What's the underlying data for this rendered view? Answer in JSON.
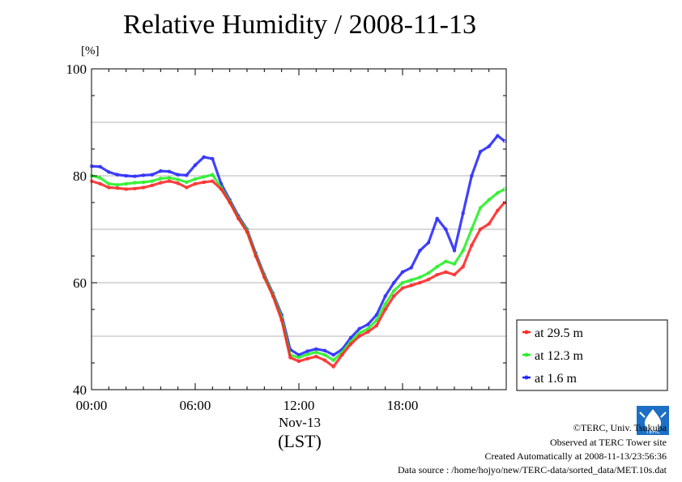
{
  "chart_data": {
    "type": "line",
    "title": "Relative Humidity / 2008-11-13",
    "ylabel": "[%]",
    "ylim": [
      40,
      100
    ],
    "y_ticks": [
      "40",
      "60",
      "80",
      "100"
    ],
    "xlim": [
      0,
      24
    ],
    "x_ticks": [
      {
        "value": 0,
        "label": "00:00"
      },
      {
        "value": 6,
        "label": "06:00"
      },
      {
        "value": 12,
        "label": "12:00"
      },
      {
        "value": 18,
        "label": "18:00"
      }
    ],
    "x_date": "Nov-13",
    "x_unit": "(LST)",
    "grid": true,
    "legend_position": "right",
    "x": [
      0,
      0.5,
      1,
      1.5,
      2,
      2.5,
      3,
      3.5,
      4,
      4.5,
      5,
      5.5,
      6,
      6.5,
      7,
      7.5,
      8,
      8.5,
      9,
      9.5,
      10,
      10.5,
      11,
      11.5,
      12,
      12.5,
      13,
      13.5,
      14,
      14.5,
      15,
      15.5,
      16,
      16.5,
      17,
      17.5,
      18,
      18.5,
      19,
      19.5,
      20,
      20.5,
      21,
      21.5,
      22,
      22.5,
      23,
      23.5,
      23.9
    ],
    "series": [
      {
        "name": "at 29.5 m",
        "color": "#ff2020",
        "values": [
          79,
          78.5,
          77.8,
          77.7,
          77.5,
          77.6,
          77.8,
          78.2,
          78.7,
          79,
          78.6,
          77.8,
          78.5,
          78.8,
          79,
          77.5,
          75,
          72,
          69.5,
          65,
          61,
          57.5,
          53,
          46,
          45.3,
          45.8,
          46.2,
          45.5,
          44.3,
          46.5,
          48.5,
          50,
          50.8,
          52,
          55,
          57.5,
          59,
          59.5,
          60,
          60.6,
          61.5,
          62,
          61.5,
          63,
          67,
          70,
          71,
          73.5,
          75
        ]
      },
      {
        "name": "at 12.3 m",
        "color": "#20ee20",
        "values": [
          80,
          79.6,
          78.5,
          78.3,
          78.5,
          78.7,
          78.8,
          79,
          79.5,
          79.6,
          79.3,
          78.8,
          79.4,
          79.8,
          80.2,
          77.8,
          75.2,
          72.2,
          69.8,
          65.2,
          61.3,
          57.8,
          53.5,
          46.5,
          46,
          46.6,
          47,
          46.5,
          45.5,
          47,
          49,
          50.6,
          51.4,
          53,
          56,
          58.5,
          60,
          60.5,
          61,
          61.8,
          63,
          64,
          63.5,
          66,
          70,
          74,
          75.5,
          76.8,
          77.5
        ]
      },
      {
        "name": "at 1.6 m",
        "color": "#2020ff",
        "values": [
          81.8,
          81.7,
          80.7,
          80.2,
          80,
          79.9,
          80.1,
          80.2,
          80.9,
          80.8,
          80.2,
          80.1,
          82,
          83.5,
          83.2,
          78.5,
          75.5,
          72.5,
          70,
          65.5,
          61.5,
          58,
          54,
          47.5,
          46.5,
          47.2,
          47.6,
          47.3,
          46.5,
          47.5,
          49.7,
          51.4,
          52.2,
          54,
          57.5,
          60,
          62,
          62.8,
          66,
          67.5,
          72,
          70,
          66,
          73,
          80,
          84.5,
          85.5,
          87.5,
          86.5
        ]
      }
    ]
  },
  "footer": {
    "copyright": "©TERC, Univ. Tsukuba",
    "observed": "Observed at TERC Tower site",
    "created": "Created Automatically at 2008-11-13/23:56:36",
    "source": "Data source : /home/hojyo/new/TERC-data/sorted_data/MET.10s.dat"
  },
  "logo": {
    "text": "TERC",
    "color": "#1c6fc4"
  }
}
